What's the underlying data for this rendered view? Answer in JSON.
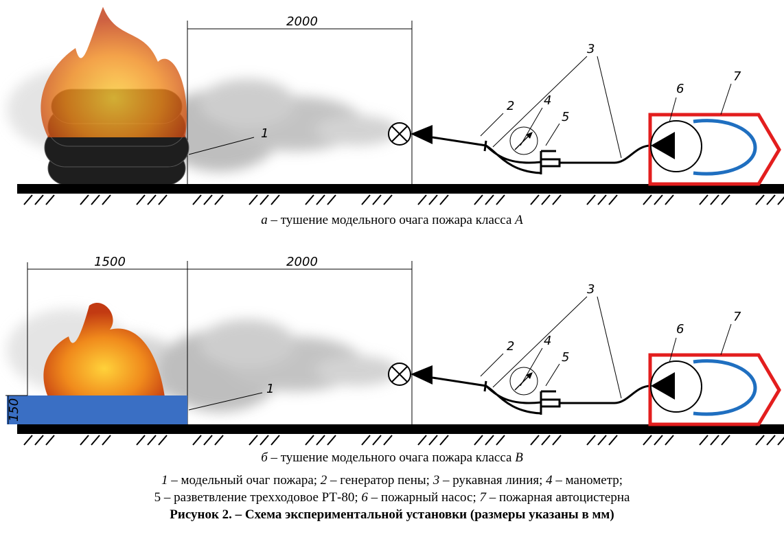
{
  "panels": [
    {
      "dimensions": [
        "2000"
      ],
      "labels": [
        "1",
        "2",
        "3",
        "4",
        "5",
        "6",
        "7"
      ],
      "caption": {
        "letter": "а",
        "text": "– тушение модельного очага пожара класса",
        "fire_class": "А"
      }
    },
    {
      "dimensions": [
        "1500",
        "2000",
        "150"
      ],
      "labels": [
        "1",
        "2",
        "3",
        "4",
        "5",
        "6",
        "7"
      ],
      "caption": {
        "letter": "б",
        "text": "– тушение модельного очага пожара класса",
        "fire_class": "В"
      }
    }
  ],
  "legend": [
    [
      {
        "number": "1",
        "text": "– модельный очаг пожара;"
      },
      {
        "number": "2",
        "text": "– генератор пены;"
      },
      {
        "number": "3",
        "text": "– рукавная линия;"
      },
      {
        "number": "4",
        "text": "– манометр;"
      }
    ],
    [
      {
        "number": "5",
        "text": "– разветвление трехходовое РТ-80;"
      },
      {
        "number": "6",
        "text": "– пожарный насос;"
      },
      {
        "number": "7",
        "text": "– пожарная автоцистерна"
      }
    ]
  ],
  "title": "Рисунок 2. – Схема экспериментальной установки (размеры указаны в мм)"
}
